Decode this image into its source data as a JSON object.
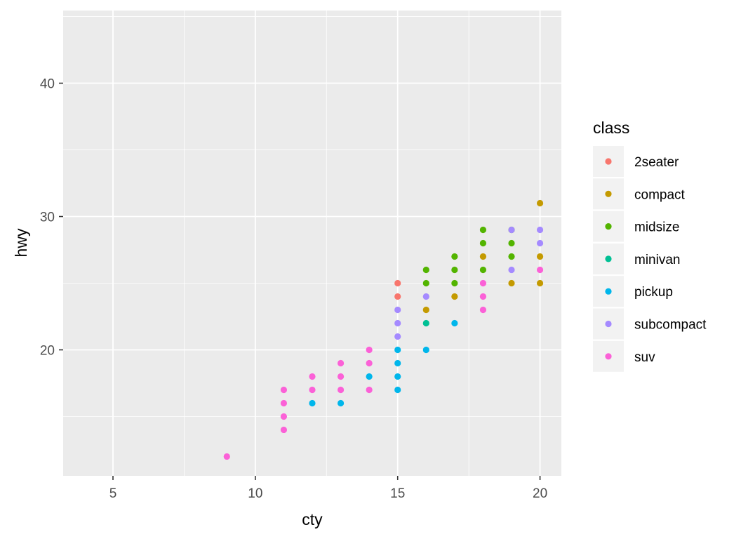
{
  "chart_data": {
    "type": "scatter",
    "xlabel": "cty",
    "ylabel": "hwy",
    "xlim": [
      3.25,
      20.75
    ],
    "ylim": [
      10.55,
      45.45
    ],
    "x_ticks": [
      5,
      10,
      15,
      20
    ],
    "y_ticks": [
      20,
      30,
      40
    ],
    "x_tick_labels": [
      "5",
      "10",
      "15",
      "20"
    ],
    "y_tick_labels": [
      "20",
      "30",
      "40"
    ],
    "grid": true,
    "legend": {
      "title": "class",
      "position": "right"
    },
    "series": [
      {
        "name": "2seater",
        "color": "#F8766D",
        "points": [
          [
            15,
            25
          ],
          [
            15,
            24
          ]
        ]
      },
      {
        "name": "compact",
        "color": "#C49A00",
        "points": [
          [
            16,
            23
          ],
          [
            17,
            24
          ],
          [
            18,
            27
          ],
          [
            19,
            25
          ],
          [
            20,
            31
          ],
          [
            20,
            27
          ],
          [
            20,
            25
          ]
        ]
      },
      {
        "name": "midsize",
        "color": "#53B400",
        "points": [
          [
            16,
            26
          ],
          [
            16,
            25
          ],
          [
            17,
            27
          ],
          [
            17,
            26
          ],
          [
            17,
            25
          ],
          [
            18,
            29
          ],
          [
            18,
            28
          ],
          [
            18,
            26
          ],
          [
            19,
            29
          ],
          [
            19,
            28
          ],
          [
            19,
            27
          ]
        ]
      },
      {
        "name": "minivan",
        "color": "#00C094",
        "points": [
          [
            16,
            22
          ]
        ]
      },
      {
        "name": "pickup",
        "color": "#00B6EB",
        "points": [
          [
            12,
            16
          ],
          [
            13,
            16
          ],
          [
            14,
            18
          ],
          [
            15,
            20
          ],
          [
            15,
            19
          ],
          [
            15,
            18
          ],
          [
            15,
            17
          ],
          [
            16,
            20
          ],
          [
            17,
            22
          ]
        ]
      },
      {
        "name": "subcompact",
        "color": "#A58AFF",
        "points": [
          [
            15,
            23
          ],
          [
            15,
            22
          ],
          [
            15,
            21
          ],
          [
            16,
            24
          ],
          [
            19,
            29
          ],
          [
            19,
            26
          ],
          [
            20,
            29
          ],
          [
            20,
            28
          ]
        ]
      },
      {
        "name": "suv",
        "color": "#FB61D7",
        "points": [
          [
            9,
            12
          ],
          [
            11,
            17
          ],
          [
            11,
            16
          ],
          [
            11,
            15
          ],
          [
            11,
            14
          ],
          [
            12,
            18
          ],
          [
            12,
            17
          ],
          [
            13,
            19
          ],
          [
            13,
            18
          ],
          [
            13,
            17
          ],
          [
            14,
            20
          ],
          [
            14,
            19
          ],
          [
            14,
            17
          ],
          [
            18,
            25
          ],
          [
            18,
            24
          ],
          [
            18,
            23
          ],
          [
            20,
            26
          ]
        ]
      }
    ]
  }
}
